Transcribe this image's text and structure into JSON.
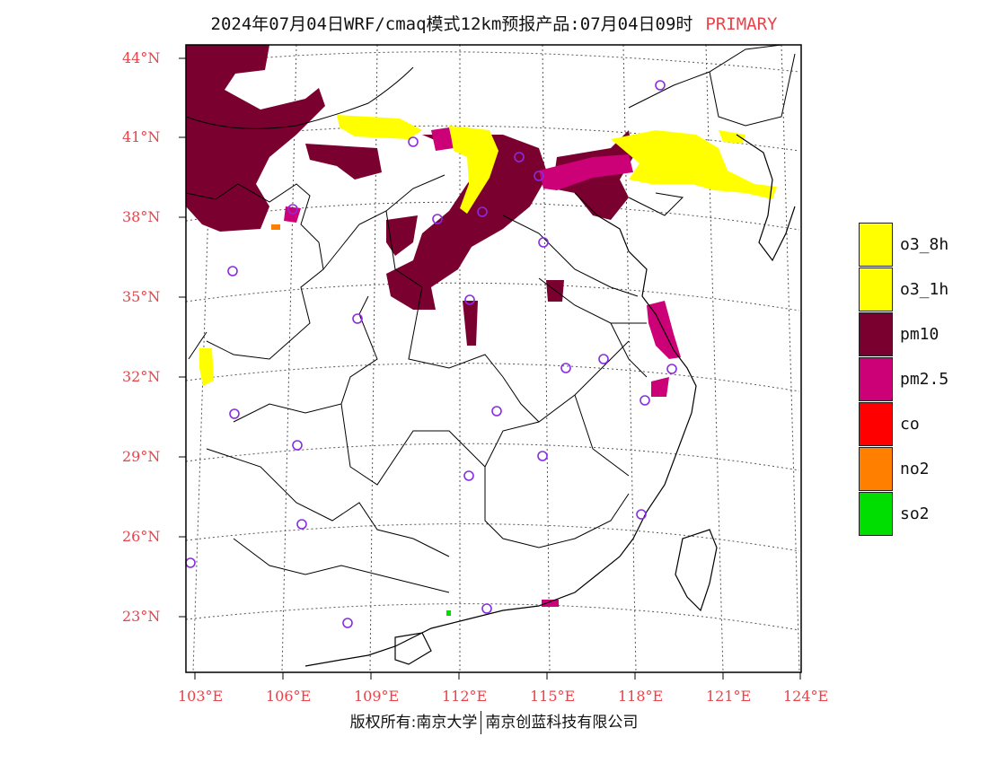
{
  "title": {
    "text": "2024年07月04日WRF/cmaq模式12km预报产品:07月04日09时",
    "tag": "PRIMARY"
  },
  "map": {
    "lat_labels": [
      "44°N",
      "41°N",
      "38°N",
      "35°N",
      "32°N",
      "29°N",
      "26°N",
      "23°N"
    ],
    "lon_labels": [
      "103°E",
      "106°E",
      "109°E",
      "112°E",
      "115°E",
      "118°E",
      "121°E",
      "124°E"
    ],
    "colors": {
      "frame": "#000000",
      "grid": "#555555",
      "boundary": "#000000",
      "station": "#8a2be2"
    }
  },
  "legend": {
    "items": [
      {
        "label": "o3_8h",
        "color": "#ffff00"
      },
      {
        "label": "o3_1h",
        "color": "#ffff00"
      },
      {
        "label": "pm10",
        "color": "#7a0030"
      },
      {
        "label": "pm2.5",
        "color": "#cc0077"
      },
      {
        "label": "co",
        "color": "#ff0000"
      },
      {
        "label": "no2",
        "color": "#ff7f00"
      },
      {
        "label": "so2",
        "color": "#00dd00"
      }
    ]
  },
  "footer": {
    "left": "版权所有:南京大学",
    "right": "南京创蓝科技有限公司"
  }
}
